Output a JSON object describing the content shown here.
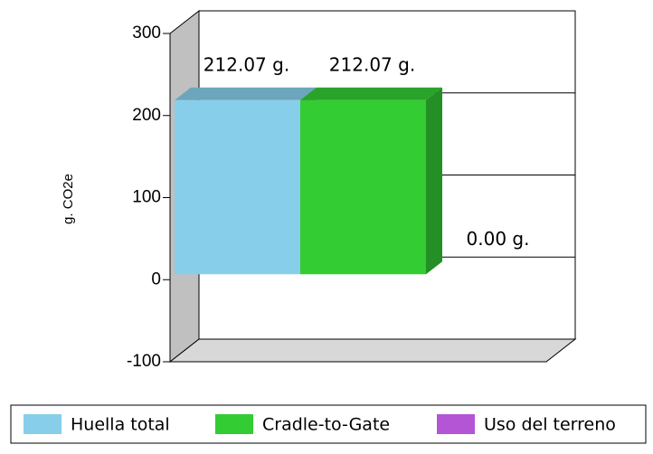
{
  "chart_data": {
    "type": "bar3d",
    "y_label": "g. CO2e",
    "ylim": [
      -100,
      300
    ],
    "yticks": [
      -100,
      0,
      100,
      200,
      300
    ],
    "grid": true,
    "legend": "bottom",
    "series": [
      {
        "name": "Huella total",
        "color": "#87ceeb",
        "values": [
          212.07
        ],
        "value_labels": [
          "212.07 g."
        ]
      },
      {
        "name": "Cradle-to-Gate",
        "color": "#33cc33",
        "values": [
          212.07
        ],
        "value_labels": [
          "212.07 g."
        ]
      },
      {
        "name": "Uso del terreno",
        "color": "#b455d6",
        "values": [
          0
        ],
        "value_labels": [
          "0.00 g."
        ]
      }
    ]
  }
}
